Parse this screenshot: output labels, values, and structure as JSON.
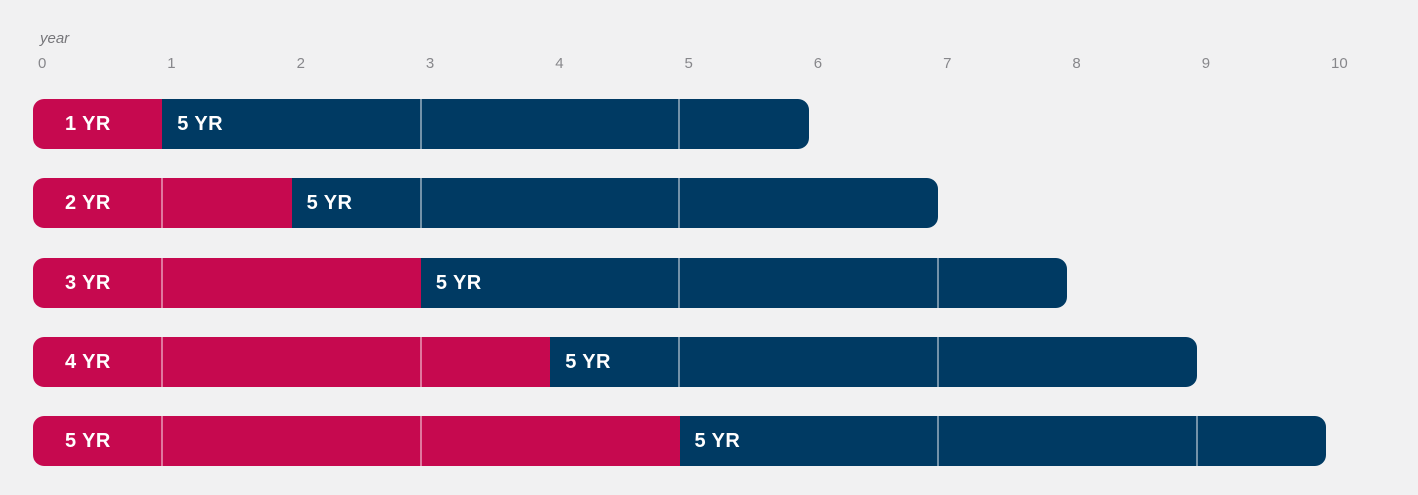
{
  "chart_data": {
    "type": "bar",
    "variant": "horizontal-timeline",
    "axis_title": "year",
    "x_ticks": [
      0,
      1,
      2,
      3,
      4,
      5,
      6,
      7,
      8,
      9,
      10
    ],
    "xlim": [
      0,
      10
    ],
    "grid": false,
    "legend": "none",
    "rows": [
      {
        "initial": {
          "label": "1 YR",
          "start": 0,
          "end": 1
        },
        "followup": {
          "label": "5 YR",
          "start": 1,
          "end": 6
        }
      },
      {
        "initial": {
          "label": "2 YR",
          "start": 0,
          "end": 2
        },
        "followup": {
          "label": "5 YR",
          "start": 2,
          "end": 7
        }
      },
      {
        "initial": {
          "label": "3 YR",
          "start": 0,
          "end": 3
        },
        "followup": {
          "label": "5 YR",
          "start": 3,
          "end": 8
        }
      },
      {
        "initial": {
          "label": "4 YR",
          "start": 0,
          "end": 4
        },
        "followup": {
          "label": "5 YR",
          "start": 4,
          "end": 9
        }
      },
      {
        "initial": {
          "label": "5 YR",
          "start": 0,
          "end": 5
        },
        "followup": {
          "label": "5 YR",
          "start": 5,
          "end": 10
        }
      }
    ],
    "segment_separators_at_years": [
      1,
      3,
      5,
      7,
      9
    ],
    "colors": {
      "initial_bar": "#C6094F",
      "followup_bar": "#003A63",
      "bar_label": "#FFFFFF",
      "axis_text": "#87878B",
      "background": "#F1F1F2",
      "separator": "rgba(255,255,255,0.45)"
    }
  }
}
